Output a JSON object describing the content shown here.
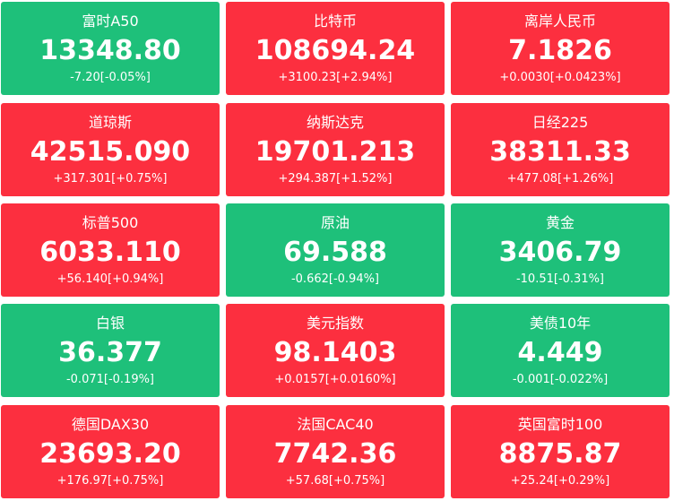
{
  "colors": {
    "up": "#fc2f3f",
    "down": "#1ec07a",
    "text": "#ffffff"
  },
  "tiles": [
    {
      "name": "富时A50",
      "price": "13348.80",
      "change": "-7.20[-0.05%]",
      "trend": "down"
    },
    {
      "name": "比特币",
      "price": "108694.24",
      "change": "+3100.23[+2.94%]",
      "trend": "up"
    },
    {
      "name": "离岸人民币",
      "price": "7.1826",
      "change": "+0.0030[+0.0423%]",
      "trend": "up"
    },
    {
      "name": "道琼斯",
      "price": "42515.090",
      "change": "+317.301[+0.75%]",
      "trend": "up"
    },
    {
      "name": "纳斯达克",
      "price": "19701.213",
      "change": "+294.387[+1.52%]",
      "trend": "up"
    },
    {
      "name": "日经225",
      "price": "38311.33",
      "change": "+477.08[+1.26%]",
      "trend": "up"
    },
    {
      "name": "标普500",
      "price": "6033.110",
      "change": "+56.140[+0.94%]",
      "trend": "up"
    },
    {
      "name": "原油",
      "price": "69.588",
      "change": "-0.662[-0.94%]",
      "trend": "down"
    },
    {
      "name": "黄金",
      "price": "3406.79",
      "change": "-10.51[-0.31%]",
      "trend": "down"
    },
    {
      "name": "白银",
      "price": "36.377",
      "change": "-0.071[-0.19%]",
      "trend": "down"
    },
    {
      "name": "美元指数",
      "price": "98.1403",
      "change": "+0.0157[+0.0160%]",
      "trend": "up"
    },
    {
      "name": "美债10年",
      "price": "4.449",
      "change": "-0.001[-0.022%]",
      "trend": "down"
    },
    {
      "name": "德国DAX30",
      "price": "23693.20",
      "change": "+176.97[+0.75%]",
      "trend": "up"
    },
    {
      "name": "法国CAC40",
      "price": "7742.36",
      "change": "+57.68[+0.75%]",
      "trend": "up"
    },
    {
      "name": "英国富时100",
      "price": "8875.87",
      "change": "+25.24[+0.29%]",
      "trend": "up"
    }
  ]
}
